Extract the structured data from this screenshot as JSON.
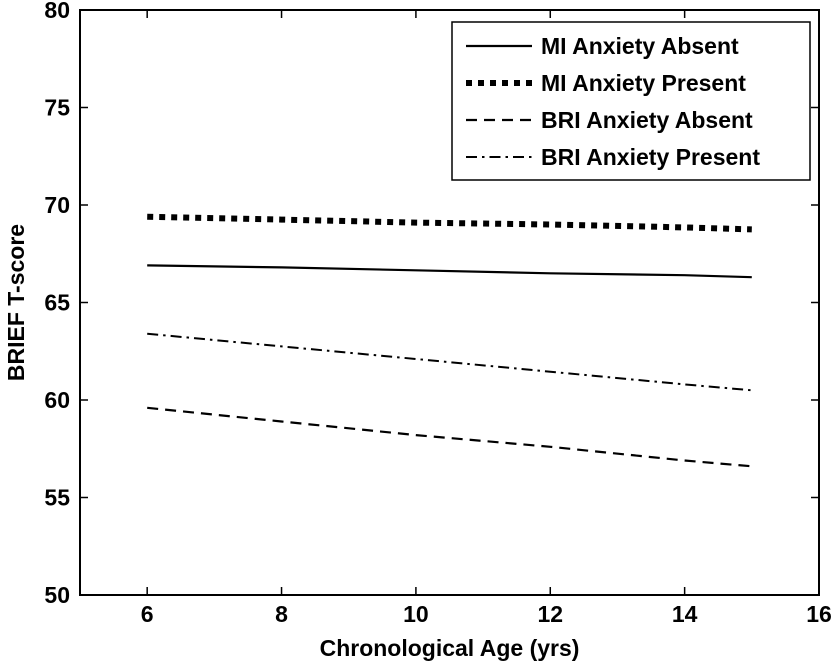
{
  "chart_data": {
    "type": "line",
    "xlabel": "Chronological Age (yrs)",
    "ylabel": "BRIEF T-score",
    "xlim": [
      5,
      16
    ],
    "ylim": [
      50,
      80
    ],
    "xticks": [
      6,
      8,
      10,
      12,
      14,
      16
    ],
    "yticks": [
      50,
      55,
      60,
      65,
      70,
      75,
      80
    ],
    "grid": false,
    "legend_position": "top-right",
    "series": [
      {
        "name": "MI Anxiety Absent",
        "style": "solid",
        "color": "#000000",
        "x": [
          6,
          8,
          10,
          12,
          14,
          15
        ],
        "y": [
          66.9,
          66.8,
          66.65,
          66.5,
          66.4,
          66.3
        ]
      },
      {
        "name": "MI Anxiety Present",
        "style": "dotted-thick",
        "color": "#000000",
        "x": [
          6,
          8,
          10,
          12,
          14,
          15
        ],
        "y": [
          69.4,
          69.25,
          69.1,
          69.0,
          68.85,
          68.75
        ]
      },
      {
        "name": "BRI Anxiety Absent",
        "style": "dashed",
        "color": "#000000",
        "x": [
          6,
          8,
          10,
          12,
          14,
          15
        ],
        "y": [
          59.6,
          58.9,
          58.2,
          57.6,
          56.9,
          56.6
        ]
      },
      {
        "name": "BRI Anxiety Present",
        "style": "dashdot",
        "color": "#000000",
        "x": [
          6,
          8,
          10,
          12,
          14,
          15
        ],
        "y": [
          63.4,
          62.75,
          62.1,
          61.45,
          60.8,
          60.5
        ]
      }
    ]
  }
}
